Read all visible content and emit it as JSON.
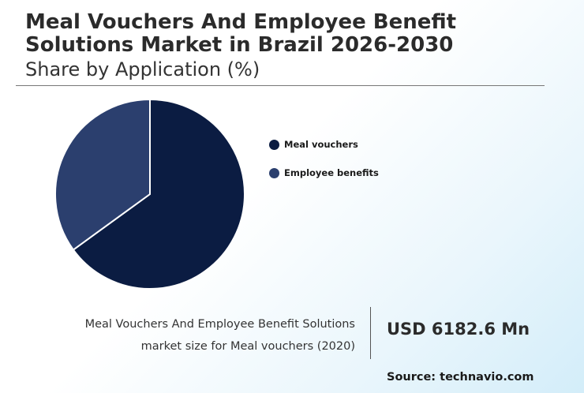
{
  "header": {
    "title": "Meal Vouchers And Employee Benefit Solutions Market in Brazil 2026-2030",
    "subtitle": "Share by Application (%)"
  },
  "chart_data": {
    "type": "pie",
    "categories": [
      "Meal vouchers",
      "Employee benefits"
    ],
    "values": [
      65,
      35
    ],
    "colors": [
      "#0b1c42",
      "#2b3f6e"
    ],
    "legend_position": "right"
  },
  "stat": {
    "description_line1": "Meal Vouchers And Employee Benefit Solutions",
    "description_line2": "market size for Meal vouchers (2020)",
    "value": "USD 6182.6 Mn"
  },
  "footer": {
    "source": "Source: technavio.com"
  }
}
